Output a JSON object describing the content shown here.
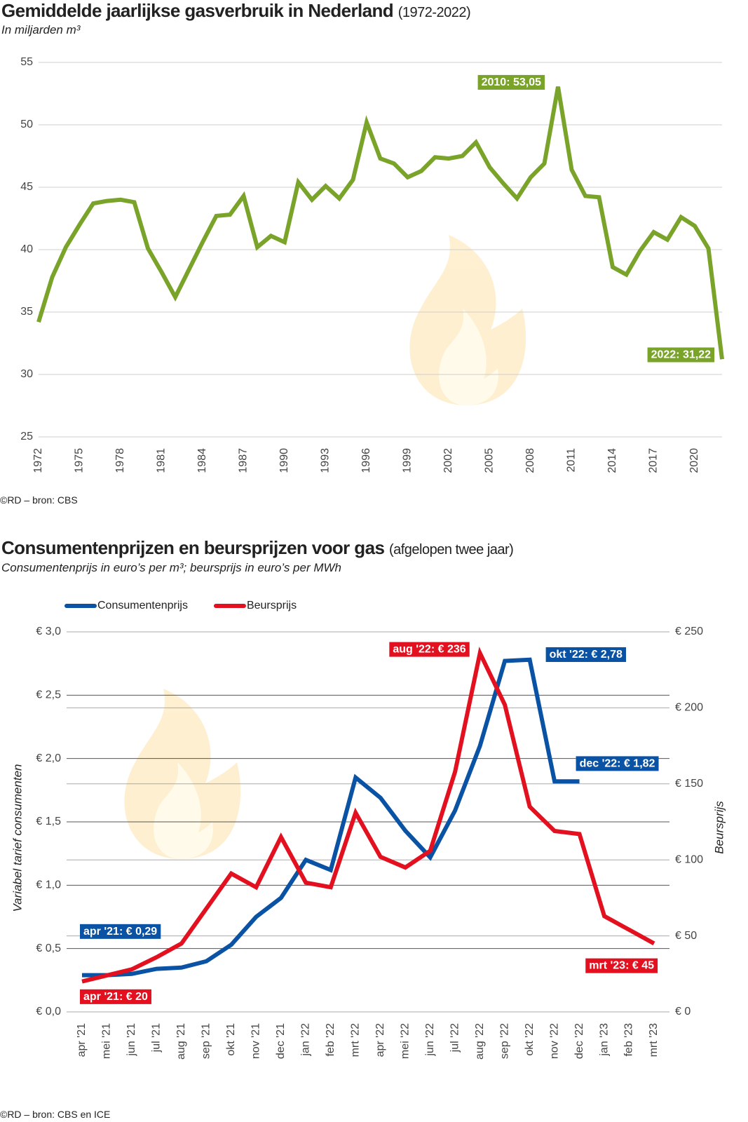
{
  "chart_data": [
    {
      "type": "line",
      "title": "Gemiddelde jaarlijkse gasverbruik in Nederland",
      "title_suffix": "(1972-2022)",
      "subtitle": "In miljarden m³",
      "source": "©RD – bron: CBS",
      "x": [
        1972,
        1973,
        1974,
        1975,
        1976,
        1977,
        1978,
        1979,
        1980,
        1981,
        1982,
        1983,
        1984,
        1985,
        1986,
        1987,
        1988,
        1989,
        1990,
        1991,
        1992,
        1993,
        1994,
        1995,
        1996,
        1997,
        1998,
        1999,
        2000,
        2001,
        2002,
        2003,
        2004,
        2005,
        2006,
        2007,
        2008,
        2009,
        2010,
        2011,
        2012,
        2013,
        2014,
        2015,
        2016,
        2017,
        2018,
        2019,
        2020,
        2021,
        2022
      ],
      "values": [
        34.2,
        37.8,
        40.2,
        42.0,
        43.7,
        43.9,
        44.0,
        43.8,
        40.1,
        38.2,
        36.2,
        38.4,
        40.6,
        42.7,
        42.8,
        44.3,
        40.2,
        41.1,
        40.6,
        45.4,
        44.0,
        45.1,
        44.1,
        45.6,
        50.2,
        47.3,
        46.9,
        45.8,
        46.3,
        47.4,
        47.3,
        47.5,
        48.6,
        46.6,
        45.3,
        44.1,
        45.8,
        46.9,
        53.05,
        46.4,
        44.3,
        44.2,
        38.6,
        38.0,
        39.9,
        41.4,
        40.8,
        42.6,
        41.9,
        40.1,
        31.22
      ],
      "value_labels": [
        null,
        null,
        null,
        null,
        null,
        null,
        null,
        null,
        null,
        null,
        null,
        null,
        null,
        null,
        null,
        null,
        null,
        null,
        null,
        null,
        null,
        null,
        null,
        null,
        null,
        null,
        null,
        null,
        null,
        null,
        null,
        null,
        null,
        null,
        null,
        null,
        null,
        null,
        "2010: 53,05",
        null,
        null,
        null,
        null,
        null,
        null,
        null,
        null,
        null,
        null,
        null,
        "2022: 31,22"
      ],
      "color": "#7aa32a",
      "xlim": [
        1972,
        2022
      ],
      "xticks": [
        1972,
        1975,
        1978,
        1981,
        1984,
        1987,
        1990,
        1993,
        1996,
        1999,
        2002,
        2005,
        2008,
        2011,
        2014,
        2017,
        2020
      ],
      "ylim": [
        25,
        55
      ],
      "yticks": [
        25,
        30,
        35,
        40,
        45,
        50,
        55
      ],
      "grid": true
    },
    {
      "type": "line",
      "title": "Consumentenprijzen en beursprijzen voor gas",
      "title_suffix": "(afgelopen twee jaar)",
      "subtitle": "Consumentenprijs in euro’s per m³; beursprijs in euro’s per MWh",
      "source": "©RD – bron: CBS en ICE",
      "ylabel": "Variabel tarief consumenten",
      "y2label": "Beursprijs",
      "legend": "top-left",
      "categories": [
        "apr '21",
        "mei '21",
        "jun '21",
        "jul '21",
        "aug '21",
        "sep '21",
        "okt '21",
        "nov '21",
        "dec '21",
        "jan '22",
        "feb '22",
        "mrt '22",
        "apr '22",
        "mei '22",
        "jun '22",
        "jul '22",
        "aug '22",
        "sep '22",
        "okt '22",
        "nov '22",
        "dec '22",
        "jan '23",
        "feb '23",
        "mrt '23"
      ],
      "series": [
        {
          "name": "Consumentenprijs",
          "color": "#0a52a4",
          "values": [
            0.29,
            0.29,
            0.3,
            0.34,
            0.35,
            0.4,
            0.53,
            0.75,
            0.9,
            1.2,
            1.12,
            1.85,
            1.69,
            1.43,
            1.22,
            1.59,
            2.1,
            2.77,
            2.78,
            1.82,
            1.82,
            null,
            null,
            null
          ],
          "value_labels": [
            "apr '21: € 0,29",
            null,
            null,
            null,
            null,
            null,
            null,
            null,
            null,
            null,
            null,
            null,
            null,
            null,
            null,
            null,
            null,
            null,
            "okt '22: € 2,78",
            null,
            "dec '22: € 1,82",
            null,
            null,
            null
          ]
        },
        {
          "name": "Beursprijs",
          "color": "#e3101f",
          "axis": "y2",
          "values": [
            20,
            24,
            28,
            36,
            45,
            68,
            91,
            82,
            115,
            85,
            82,
            131,
            102,
            95,
            106,
            158,
            236,
            202,
            135,
            119,
            117,
            63,
            54,
            45
          ],
          "value_labels": [
            "apr '21: € 20",
            null,
            null,
            null,
            null,
            null,
            null,
            null,
            null,
            null,
            null,
            null,
            null,
            null,
            null,
            null,
            "aug '22: € 236",
            null,
            null,
            null,
            null,
            null,
            null,
            "mrt '23: € 45"
          ]
        }
      ],
      "ylim": [
        0,
        3
      ],
      "yticks": [
        {
          "value": 0,
          "label": "€ 0,0"
        },
        {
          "value": 0.5,
          "label": "€ 0,5"
        },
        {
          "value": 1,
          "label": "€ 1,0"
        },
        {
          "value": 1.5,
          "label": "€ 1,5"
        },
        {
          "value": 2,
          "label": "€ 2,0"
        },
        {
          "value": 2.5,
          "label": "€ 2,5"
        },
        {
          "value": 3,
          "label": "€ 3,0"
        }
      ],
      "y2lim": [
        0,
        250
      ],
      "y2ticks": [
        {
          "value": 0,
          "label": "€ 0"
        },
        {
          "value": 50,
          "label": "€ 50"
        },
        {
          "value": 100,
          "label": "€ 100"
        },
        {
          "value": 150,
          "label": "€ 150"
        },
        {
          "value": 200,
          "label": "€ 200"
        },
        {
          "value": 250,
          "label": "€ 250"
        }
      ],
      "grid": true
    }
  ]
}
